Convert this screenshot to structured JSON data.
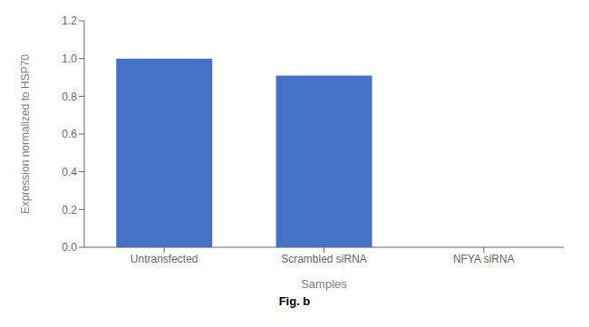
{
  "chart_data": {
    "type": "bar",
    "categories": [
      "Untransfected",
      "Scrambled siRNA",
      "NFYA siRNA"
    ],
    "values": [
      1.0,
      0.91,
      0.0
    ],
    "color": "#4472c4",
    "ylim": [
      0,
      1.2
    ],
    "yticks": [
      {
        "value": 0,
        "label": "0.0"
      },
      0.2,
      0.4,
      0.6,
      0.8,
      {
        "value": 1.0,
        "label": "1.0"
      },
      1.2
    ],
    "ylabel": "Expression normalized to HSP70",
    "xlabel": "Samples",
    "annotations": [
      "Fig. b"
    ],
    "grid": false
  }
}
